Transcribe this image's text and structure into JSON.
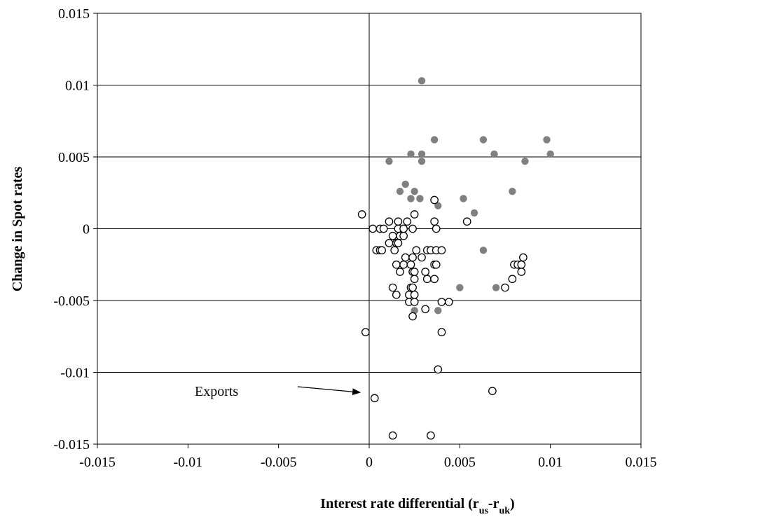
{
  "chart_data": {
    "type": "scatter",
    "title": "",
    "xlabel": "Interest rate differential (r",
    "xlabel_sub1": "us",
    "xlabel_sep": "-r",
    "xlabel_sub2": "uk",
    "xlabel_close": ")",
    "ylabel": "Change in Spot rates",
    "xlim": [
      -0.015,
      0.015
    ],
    "ylim": [
      -0.015,
      0.015
    ],
    "xticks": [
      -0.015,
      -0.01,
      -0.005,
      0,
      0.005,
      0.01,
      0.015
    ],
    "xtick_labels": [
      "-0.015",
      "-0.01",
      "-0.005",
      "0",
      "0.005",
      "0.01",
      "0.015"
    ],
    "yticks": [
      -0.015,
      -0.01,
      -0.005,
      0,
      0.005,
      0.01,
      0.015
    ],
    "ytick_labels": [
      "-0.015",
      "-0.01",
      "-0.005",
      "0",
      "0.005",
      "0.01",
      "0.015"
    ],
    "grid": "horizontal",
    "legend": "none",
    "annotation": {
      "text": "Exports",
      "arrow_to": [
        -0.0005,
        -0.0114
      ]
    },
    "series": [
      {
        "style": "filled",
        "color": "#808080",
        "points": [
          [
            0.0029,
            0.0103
          ],
          [
            0.0036,
            0.0062
          ],
          [
            0.0063,
            0.0062
          ],
          [
            0.0098,
            0.0062
          ],
          [
            0.0023,
            0.0052
          ],
          [
            0.0029,
            0.0052
          ],
          [
            0.0069,
            0.0052
          ],
          [
            0.01,
            0.0052
          ],
          [
            0.0011,
            0.0047
          ],
          [
            0.0029,
            0.0047
          ],
          [
            0.0086,
            0.0047
          ],
          [
            0.002,
            0.0031
          ],
          [
            0.0017,
            0.0026
          ],
          [
            0.0025,
            0.0026
          ],
          [
            0.0079,
            0.0026
          ],
          [
            0.0023,
            0.0021
          ],
          [
            0.0028,
            0.0021
          ],
          [
            0.0052,
            0.0021
          ],
          [
            0.0038,
            0.0016
          ],
          [
            0.0058,
            0.0011
          ],
          [
            0.0063,
            -0.0015
          ],
          [
            0.005,
            -0.0041
          ],
          [
            0.007,
            -0.0041
          ],
          [
            0.0025,
            -0.0057
          ],
          [
            0.0038,
            -0.0057
          ]
        ]
      },
      {
        "style": "hollow",
        "color": "#000000",
        "points": [
          [
            -0.0004,
            0.001
          ],
          [
            0.0025,
            0.001
          ],
          [
            0.0036,
            0.002
          ],
          [
            0.0011,
            0.0005
          ],
          [
            0.0016,
            0.0005
          ],
          [
            0.0021,
            0.0005
          ],
          [
            0.0036,
            0.0005
          ],
          [
            0.0054,
            0.0005
          ],
          [
            0.0002,
            0.0
          ],
          [
            0.0006,
            0.0
          ],
          [
            0.0008,
            0.0
          ],
          [
            0.0016,
            0.0
          ],
          [
            0.0019,
            0.0
          ],
          [
            0.0024,
            0.0
          ],
          [
            0.0037,
            0.0
          ],
          [
            0.0013,
            -0.0005
          ],
          [
            0.0017,
            -0.0005
          ],
          [
            0.0019,
            -0.0005
          ],
          [
            0.0011,
            -0.001
          ],
          [
            0.0015,
            -0.001
          ],
          [
            0.0016,
            -0.001
          ],
          [
            0.0004,
            -0.0015
          ],
          [
            0.0006,
            -0.0015
          ],
          [
            0.0007,
            -0.0015
          ],
          [
            0.0014,
            -0.0015
          ],
          [
            0.0026,
            -0.0015
          ],
          [
            0.0032,
            -0.0015
          ],
          [
            0.0034,
            -0.0015
          ],
          [
            0.0037,
            -0.0015
          ],
          [
            0.004,
            -0.0015
          ],
          [
            0.002,
            -0.002
          ],
          [
            0.0024,
            -0.002
          ],
          [
            0.0029,
            -0.002
          ],
          [
            0.0085,
            -0.002
          ],
          [
            0.0015,
            -0.0025
          ],
          [
            0.0019,
            -0.0025
          ],
          [
            0.0023,
            -0.0025
          ],
          [
            0.0036,
            -0.0025
          ],
          [
            0.0037,
            -0.0025
          ],
          [
            0.008,
            -0.0025
          ],
          [
            0.0082,
            -0.0025
          ],
          [
            0.0084,
            -0.0025
          ],
          [
            0.0017,
            -0.003
          ],
          [
            0.0024,
            -0.003
          ],
          [
            0.0025,
            -0.003
          ],
          [
            0.0031,
            -0.003
          ],
          [
            0.0084,
            -0.003
          ],
          [
            0.0025,
            -0.0035
          ],
          [
            0.0032,
            -0.0035
          ],
          [
            0.0036,
            -0.0035
          ],
          [
            0.0079,
            -0.0035
          ],
          [
            0.0013,
            -0.0041
          ],
          [
            0.0023,
            -0.0041
          ],
          [
            0.0024,
            -0.0041
          ],
          [
            0.0075,
            -0.0041
          ],
          [
            0.0015,
            -0.0046
          ],
          [
            0.0022,
            -0.0046
          ],
          [
            0.0025,
            -0.0046
          ],
          [
            0.0022,
            -0.0051
          ],
          [
            0.0025,
            -0.0051
          ],
          [
            0.004,
            -0.0051
          ],
          [
            0.0044,
            -0.0051
          ],
          [
            0.0031,
            -0.0056
          ],
          [
            0.0024,
            -0.0061
          ],
          [
            -0.0002,
            -0.0072
          ],
          [
            0.004,
            -0.0072
          ],
          [
            0.0038,
            -0.0098
          ],
          [
            0.0068,
            -0.0113
          ],
          [
            0.0003,
            -0.0118
          ],
          [
            0.0013,
            -0.0144
          ],
          [
            0.0034,
            -0.0144
          ]
        ]
      }
    ]
  }
}
